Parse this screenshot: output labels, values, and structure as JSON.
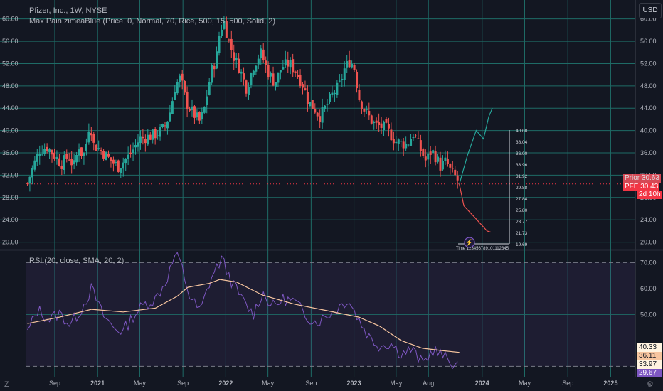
{
  "header": {
    "symbol_line": "Pfizer, Inc., 1W, NYSE",
    "indicator_line": "Max Pain zimeaBlue (Price, 0, Normal, 70, Rice, 500, 15, 500, Solid, 2)",
    "currency": "USD"
  },
  "rsi_header": "RSI (20, close, SMA, 20, 2)",
  "price_tags": {
    "prior_label": "Prior",
    "prior_value": "30.63",
    "ticker": "PFE",
    "last_value": "30.43",
    "countdown": "2d 10h"
  },
  "rsi_tags": [
    "40.33",
    "36.11",
    "33.97",
    "29.67"
  ],
  "icons": {
    "logo": "tradingview-logo-icon",
    "settings": "gear-icon",
    "lightning": "lightning-icon"
  },
  "max_pain_levels": [
    "40.08",
    "38.04",
    "36.00",
    "33.96",
    "31.92",
    "29.88",
    "27.84",
    "25.80",
    "23.77",
    "21.73",
    "19.69"
  ],
  "max_pain_caption": "Time 123456789101112345",
  "colors": {
    "up": "#26a69a",
    "down": "#ef5350",
    "grid": "#1e6b66",
    "rsi": "#7e57c2",
    "rsi_ma": "#f7c59f",
    "last_line": "#f23645"
  },
  "chart_data": [
    {
      "type": "candlestick",
      "title": "Pfizer, Inc., 1W, NYSE",
      "y_ticks": [
        60,
        56,
        52,
        48,
        44,
        40,
        36,
        32,
        28,
        24,
        20
      ],
      "y_tick_labels": [
        "60.00",
        "56.00",
        "52.00",
        "48.00",
        "44.00",
        "40.00",
        "36.00",
        "32.00",
        "28.00",
        "24.00",
        "20.00"
      ],
      "ylim": [
        18.8,
        63.4
      ],
      "x_tick_labels": [
        "Sep",
        "2021",
        "May",
        "Sep",
        "2022",
        "May",
        "Sep",
        "2023",
        "May",
        "Aug",
        "2024",
        "May",
        "Sep",
        "2025"
      ],
      "x_tick_dates": [
        "2020-09-01",
        "2021-01-01",
        "2021-05-01",
        "2021-09-01",
        "2022-01-01",
        "2022-05-01",
        "2022-09-01",
        "2023-01-01",
        "2023-05-01",
        "2023-08-01",
        "2024-01-01",
        "2024-05-01",
        "2024-09-01",
        "2025-01-01"
      ],
      "xlim": [
        "2020-06-10",
        "2025-03-12"
      ],
      "price_waypoints": [
        [
          "2020-06-15",
          30.5
        ],
        [
          "2020-07-01",
          33.5
        ],
        [
          "2020-07-20",
          36.5
        ],
        [
          "2020-08-10",
          37.0
        ],
        [
          "2020-09-01",
          35.5
        ],
        [
          "2020-09-20",
          34.0
        ],
        [
          "2020-10-10",
          35.5
        ],
        [
          "2020-10-25",
          33.5
        ],
        [
          "2020-11-10",
          37.5
        ],
        [
          "2020-11-20",
          35.0
        ],
        [
          "2020-12-01",
          38.0
        ],
        [
          "2020-12-10",
          42.0
        ],
        [
          "2020-12-20",
          37.5
        ],
        [
          "2021-01-10",
          36.5
        ],
        [
          "2021-02-01",
          35.0
        ],
        [
          "2021-03-01",
          33.5
        ],
        [
          "2021-04-01",
          35.5
        ],
        [
          "2021-05-01",
          38.5
        ],
        [
          "2021-06-01",
          39.0
        ],
        [
          "2021-06-20",
          39.5
        ],
        [
          "2021-07-10",
          40.5
        ],
        [
          "2021-07-25",
          43.0
        ],
        [
          "2021-08-10",
          48.0
        ],
        [
          "2021-08-25",
          49.5
        ],
        [
          "2021-09-10",
          45.0
        ],
        [
          "2021-10-01",
          43.0
        ],
        [
          "2021-10-20",
          41.5
        ],
        [
          "2021-11-01",
          44.0
        ],
        [
          "2021-11-20",
          50.5
        ],
        [
          "2021-12-05",
          53.0
        ],
        [
          "2021-12-15",
          58.0
        ],
        [
          "2021-12-27",
          59.5
        ],
        [
          "2022-01-10",
          56.0
        ],
        [
          "2022-01-25",
          53.0
        ],
        [
          "2022-02-10",
          51.0
        ],
        [
          "2022-03-01",
          47.5
        ],
        [
          "2022-03-20",
          51.5
        ],
        [
          "2022-04-10",
          54.0
        ],
        [
          "2022-05-01",
          50.5
        ],
        [
          "2022-05-20",
          48.5
        ],
        [
          "2022-06-10",
          51.5
        ],
        [
          "2022-07-01",
          52.0
        ],
        [
          "2022-07-20",
          50.5
        ],
        [
          "2022-08-10",
          48.0
        ],
        [
          "2022-08-25",
          45.0
        ],
        [
          "2022-09-10",
          44.0
        ],
        [
          "2022-09-25",
          42.5
        ],
        [
          "2022-10-15",
          44.5
        ],
        [
          "2022-11-01",
          46.5
        ],
        [
          "2022-11-20",
          48.0
        ],
        [
          "2022-12-05",
          51.0
        ],
        [
          "2022-12-20",
          52.5
        ],
        [
          "2023-01-01",
          51.5
        ],
        [
          "2023-01-15",
          46.0
        ],
        [
          "2023-02-01",
          43.5
        ],
        [
          "2023-03-01",
          41.0
        ],
        [
          "2023-04-01",
          40.5
        ],
        [
          "2023-05-01",
          38.0
        ],
        [
          "2023-06-01",
          37.5
        ],
        [
          "2023-06-20",
          39.5
        ],
        [
          "2023-07-10",
          36.5
        ],
        [
          "2023-07-25",
          34.5
        ],
        [
          "2023-08-10",
          36.5
        ],
        [
          "2023-08-20",
          35.5
        ],
        [
          "2023-09-05",
          33.5
        ],
        [
          "2023-09-20",
          34.5
        ],
        [
          "2023-10-05",
          32.5
        ],
        [
          "2023-10-20",
          31.5
        ],
        [
          "2023-10-28",
          30.43
        ]
      ],
      "projection_up": [
        [
          "2023-10-28",
          30.4
        ],
        [
          "2023-11-20",
          35.5
        ],
        [
          "2023-12-15",
          40.0
        ],
        [
          "2024-01-05",
          38.5
        ],
        [
          "2024-01-20",
          42.5
        ],
        [
          "2024-01-30",
          44.0
        ]
      ],
      "projection_down": [
        [
          "2023-10-28",
          30.4
        ],
        [
          "2023-11-10",
          26.5
        ],
        [
          "2023-12-10",
          24.5
        ],
        [
          "2024-01-15",
          22.0
        ],
        [
          "2024-01-25",
          21.8
        ]
      ],
      "max_pain_price": 30.43,
      "last_price": 30.43
    },
    {
      "type": "line",
      "title": "RSI (20, close, SMA, 20, 2)",
      "y_tick_labels": [
        "70.00",
        "60.00",
        "50.00"
      ],
      "y_ticks": [
        70,
        60,
        50
      ],
      "ylim": [
        26.0,
        74.5
      ],
      "bands": [
        30,
        70
      ],
      "series": [
        {
          "name": "RSI",
          "points": [
            [
              "2020-06-15",
              43.0
            ],
            [
              "2020-07-15",
              52.0
            ],
            [
              "2020-08-15",
              48.0
            ],
            [
              "2020-09-15",
              50.5
            ],
            [
              "2020-10-15",
              46.0
            ],
            [
              "2020-11-15",
              52.0
            ],
            [
              "2020-12-15",
              60.0
            ],
            [
              "2021-01-15",
              50.0
            ],
            [
              "2021-02-15",
              45.0
            ],
            [
              "2021-03-15",
              43.5
            ],
            [
              "2021-04-15",
              50.0
            ],
            [
              "2021-05-15",
              54.0
            ],
            [
              "2021-06-15",
              56.0
            ],
            [
              "2021-07-15",
              63.0
            ],
            [
              "2021-08-10",
              73.0
            ],
            [
              "2021-08-25",
              70.0
            ],
            [
              "2021-09-20",
              57.0
            ],
            [
              "2021-10-20",
              51.0
            ],
            [
              "2021-11-20",
              64.0
            ],
            [
              "2021-12-20",
              71.5
            ],
            [
              "2022-01-20",
              62.0
            ],
            [
              "2022-02-20",
              55.0
            ],
            [
              "2022-03-20",
              50.0
            ],
            [
              "2022-04-15",
              58.5
            ],
            [
              "2022-05-15",
              53.0
            ],
            [
              "2022-06-15",
              56.0
            ],
            [
              "2022-07-15",
              55.0
            ],
            [
              "2022-08-15",
              50.0
            ],
            [
              "2022-09-15",
              47.0
            ],
            [
              "2022-10-15",
              49.5
            ],
            [
              "2022-11-15",
              52.5
            ],
            [
              "2022-12-15",
              56.0
            ],
            [
              "2023-01-15",
              48.0
            ],
            [
              "2023-02-15",
              41.0
            ],
            [
              "2023-03-15",
              38.0
            ],
            [
              "2023-04-15",
              39.0
            ],
            [
              "2023-05-15",
              35.0
            ],
            [
              "2023-06-15",
              36.5
            ],
            [
              "2023-07-15",
              31.0
            ],
            [
              "2023-08-15",
              36.5
            ],
            [
              "2023-09-15",
              33.5
            ],
            [
              "2023-10-15",
              31.0
            ],
            [
              "2023-10-28",
              29.67
            ]
          ]
        },
        {
          "name": "RSI-based MA",
          "points": [
            [
              "2020-06-15",
              46.5
            ],
            [
              "2020-09-15",
              49.0
            ],
            [
              "2020-12-15",
              52.0
            ],
            [
              "2021-03-15",
              51.0
            ],
            [
              "2021-06-15",
              52.5
            ],
            [
              "2021-08-15",
              57.0
            ],
            [
              "2021-09-15",
              60.5
            ],
            [
              "2021-11-15",
              62.0
            ],
            [
              "2021-12-15",
              63.5
            ],
            [
              "2022-02-01",
              62.5
            ],
            [
              "2022-04-15",
              57.5
            ],
            [
              "2022-07-15",
              54.0
            ],
            [
              "2022-10-15",
              51.5
            ],
            [
              "2023-01-15",
              49.0
            ],
            [
              "2023-03-15",
              45.5
            ],
            [
              "2023-05-15",
              40.0
            ],
            [
              "2023-07-15",
              37.0
            ],
            [
              "2023-09-15",
              36.0
            ],
            [
              "2023-10-28",
              35.4
            ]
          ]
        }
      ],
      "last_values": {
        "RSI": 29.67,
        "RSI-based MA": 35.4
      }
    }
  ]
}
